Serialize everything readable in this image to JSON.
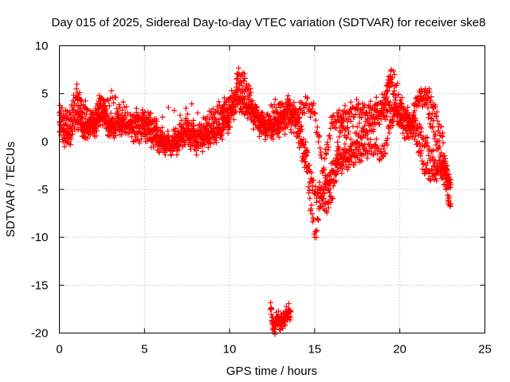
{
  "chart_data": {
    "type": "scatter",
    "title": "Day 015 of 2025, Sidereal Day-to-day VTEC variation (SDTVAR) for receiver ske8",
    "xlabel": "GPS time / hours",
    "ylabel": "SDTVAR / TECUs",
    "xlim": [
      0,
      25
    ],
    "ylim": [
      -20,
      10
    ],
    "xticks": [
      0,
      5,
      10,
      15,
      20,
      25
    ],
    "yticks": [
      -20,
      -15,
      -10,
      -5,
      0,
      5,
      10
    ],
    "grid": true,
    "marker": "+",
    "series": [
      {
        "name": "SDTVAR",
        "color": "#ff0000",
        "traces": [
          {
            "x": [
              0.0,
              0.5,
              1.0,
              1.5,
              2.0,
              2.5,
              3.0,
              3.5,
              4.0,
              4.5,
              5.0,
              5.5,
              6.0,
              6.5,
              7.0,
              7.5,
              8.0,
              8.5,
              9.0,
              9.5,
              10.0,
              10.5,
              11.0,
              11.5,
              12.0,
              12.5,
              13.0,
              13.5,
              14.0,
              14.5,
              15.0,
              15.5,
              16.0,
              16.5,
              17.0,
              17.5,
              18.0,
              18.5,
              19.0,
              19.5,
              20.0,
              20.5,
              21.0,
              21.5,
              22.0,
              22.5,
              23.0
            ],
            "y": [
              3.0,
              2.5,
              4.5,
              3.5,
              1.0,
              2.5,
              1.0,
              1.5,
              1.5,
              0.5,
              1.0,
              0.0,
              -0.5,
              -0.5,
              -0.5,
              1.0,
              0.5,
              1.5,
              2.5,
              3.5,
              1.5,
              7.0,
              6.0,
              3.0,
              2.0,
              1.0,
              1.5,
              2.0,
              3.0,
              4.0,
              3.0,
              -3.0,
              2.0,
              2.5,
              3.0,
              3.5,
              3.0,
              3.5,
              4.0,
              6.5,
              2.0,
              0.5,
              4.5,
              4.5,
              1.0,
              -2.0,
              -4.0
            ]
          },
          {
            "x": [
              0.0,
              0.5,
              1.0,
              1.5,
              2.0,
              2.5,
              3.0,
              3.5,
              4.0,
              4.5,
              5.0,
              5.5,
              6.0,
              6.5,
              7.0,
              7.5,
              8.0,
              8.5,
              9.0,
              9.5,
              10.0,
              10.5,
              11.0,
              11.5,
              12.0,
              12.5,
              13.0,
              13.5,
              14.0,
              14.5,
              15.0,
              15.5,
              16.0,
              16.5,
              17.0,
              17.5,
              18.0,
              18.5,
              19.0,
              19.5,
              20.0,
              20.5,
              21.0,
              21.5,
              22.0,
              22.5,
              23.0
            ],
            "y": [
              1.0,
              0.0,
              2.0,
              1.0,
              2.5,
              4.5,
              1.0,
              2.5,
              1.5,
              2.0,
              2.5,
              2.0,
              0.5,
              0.0,
              1.0,
              2.0,
              1.0,
              0.5,
              1.0,
              1.5,
              3.5,
              5.5,
              4.0,
              3.0,
              1.5,
              2.0,
              3.0,
              4.0,
              2.5,
              -1.0,
              -5.5,
              -5.0,
              -3.0,
              -1.5,
              -1.0,
              0.0,
              1.0,
              2.0,
              3.0,
              3.5,
              2.5,
              2.0,
              0.0,
              -3.0,
              -3.5,
              -2.5,
              -4.5
            ]
          },
          {
            "x": [
              0.0,
              0.5,
              1.0,
              1.5,
              2.0,
              2.5,
              3.0,
              3.5,
              4.0,
              4.5,
              5.0,
              5.5,
              6.0,
              6.5,
              7.0,
              7.5,
              8.0,
              8.5,
              9.0,
              9.5,
              10.0,
              10.5,
              11.0,
              11.5,
              12.0,
              12.5,
              13.0,
              13.5,
              14.0,
              14.5,
              15.0,
              15.5,
              16.0,
              16.5,
              17.0,
              17.5,
              18.0,
              18.5,
              19.0,
              19.5,
              20.0,
              20.5,
              21.0,
              21.5,
              22.0,
              22.5,
              23.0
            ],
            "y": [
              2.0,
              1.0,
              3.0,
              1.5,
              1.5,
              3.0,
              2.0,
              2.0,
              1.5,
              2.5,
              2.0,
              1.0,
              0.0,
              -0.5,
              0.0,
              0.5,
              -0.5,
              0.0,
              0.5,
              1.0,
              2.5,
              4.0,
              3.5,
              2.0,
              1.0,
              1.5,
              2.0,
              3.5,
              1.0,
              -2.5,
              -10.0,
              -5.0,
              -4.0,
              -2.5,
              -2.0,
              -1.5,
              -1.0,
              -0.5,
              -1.5,
              2.0,
              4.0,
              2.5,
              1.5,
              0.0,
              -2.0,
              -3.5,
              -6.5
            ]
          },
          {
            "x": [
              1.0,
              1.5,
              2.0,
              3.0,
              4.0,
              9.5,
              10.0,
              12.0,
              13.0,
              15.5,
              16.0,
              16.5,
              17.0,
              19.0,
              19.5,
              20.5,
              21.5,
              22.0,
              22.5,
              22.9
            ],
            "y": [
              5.5,
              0.5,
              3.0,
              4.5,
              3.0,
              3.0,
              4.5,
              2.5,
              4.0,
              -7.0,
              -6.0,
              1.5,
              1.0,
              3.0,
              7.5,
              1.5,
              5.5,
              3.5,
              0.5,
              -6.5
            ]
          },
          {
            "x": [
              12.4,
              12.6,
              12.8,
              13.0,
              13.2,
              13.4,
              13.6
            ],
            "y": [
              -17.5,
              -19.5,
              -18.5,
              -19.0,
              -18.5,
              -18.0,
              -17.8
            ]
          }
        ]
      }
    ]
  }
}
